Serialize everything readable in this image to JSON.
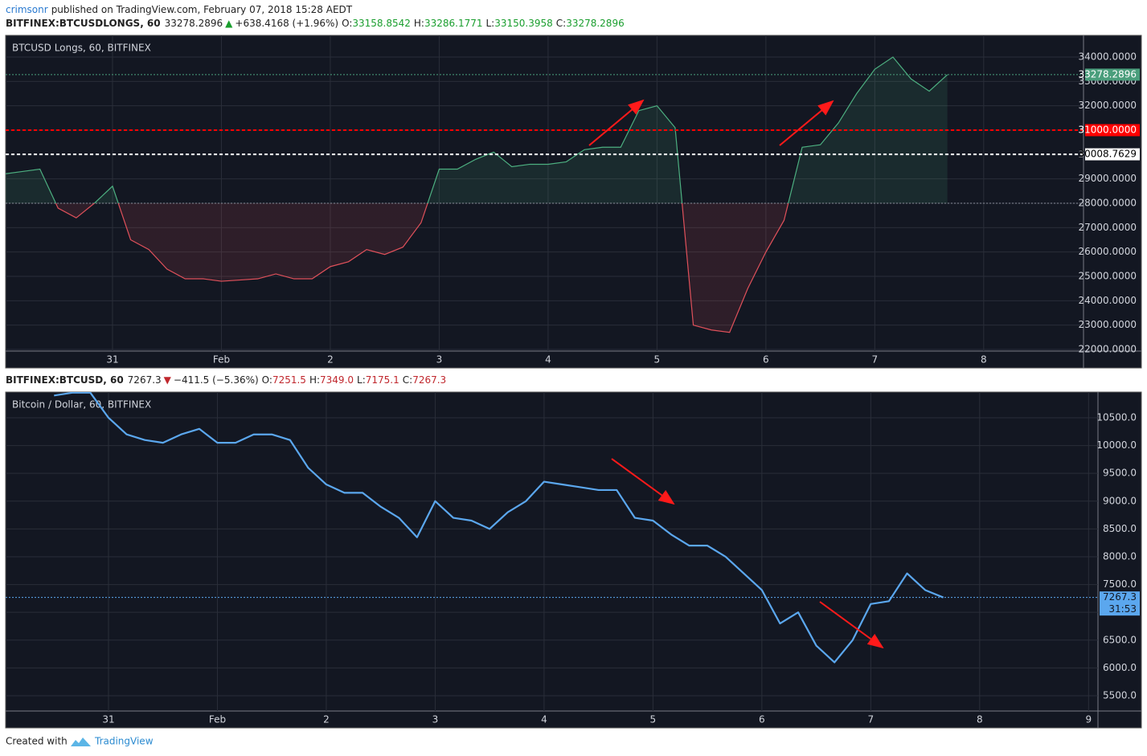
{
  "header": {
    "author": "crimsonr",
    "published": "published on TradingView.com, February 07, 2018 15:28 AEDT"
  },
  "footer": {
    "created": "Created with",
    "brand": "TradingView"
  },
  "chart_data": [
    {
      "type": "baseline-area",
      "symbol": "BITFINEX:BTCUSDLONGS, 60",
      "last": 33278.2896,
      "change": "+638.4168 (+1.96%)",
      "direction": "up",
      "value_color": "#1a9e2e",
      "ohlc": [
        {
          "label": "O:",
          "value": 33158.8542
        },
        {
          "label": "H:",
          "value": 33286.1771
        },
        {
          "label": "L:",
          "value": 33150.3958
        },
        {
          "label": "C:",
          "value": 33278.2896
        }
      ],
      "pane_title": "BTCUSD Longs, 60, BITFINEX",
      "categories": [
        null,
        null,
        null,
        null,
        null,
        null,
        "31",
        null,
        null,
        null,
        null,
        null,
        "Feb",
        null,
        null,
        null,
        null,
        null,
        "2",
        null,
        null,
        null,
        null,
        null,
        "3",
        null,
        null,
        null,
        null,
        null,
        "4",
        null,
        null,
        null,
        null,
        null,
        "5",
        null,
        null,
        null,
        null,
        null,
        "6",
        null,
        null,
        null,
        null,
        null,
        "7",
        null,
        null,
        null,
        null,
        null,
        "8"
      ],
      "values": [
        29200,
        29300,
        29400,
        27800,
        27400,
        28000,
        28700,
        26500,
        26100,
        25300,
        24900,
        24900,
        24800,
        24850,
        24900,
        25100,
        24900,
        24900,
        25400,
        25600,
        26100,
        25900,
        26200,
        27200,
        29400,
        29400,
        29800,
        30100,
        29500,
        29600,
        29600,
        29700,
        30200,
        30300,
        30300,
        31800,
        32000,
        31100,
        23000,
        22800,
        22700,
        24500,
        26000,
        27300,
        30300,
        30400,
        31300,
        32500,
        33500,
        34000,
        33100,
        32600,
        33278.2896,
        null,
        null
      ],
      "baseline": 28000,
      "color_up": "#4caf80",
      "color_down": "#e0505a",
      "ylim": [
        21934,
        34890
      ],
      "yticks": [
        {
          "value": 22000,
          "label": "22000.0000"
        },
        {
          "value": 23000,
          "label": "23000.0000"
        },
        {
          "value": 24000,
          "label": "24000.0000"
        },
        {
          "value": 25000,
          "label": "25000.0000"
        },
        {
          "value": 26000,
          "label": "26000.0000"
        },
        {
          "value": 27000,
          "label": "27000.0000"
        },
        {
          "value": 28000,
          "label": "28000.0000"
        },
        {
          "value": 29000,
          "label": "29000.0000"
        },
        {
          "value": 30000,
          "label": "30000.0000"
        },
        {
          "value": 31000,
          "label": "31000.0000"
        },
        {
          "value": 32000,
          "label": "32000.0000"
        },
        {
          "value": 33000,
          "label": "33000.0000"
        },
        {
          "value": 34000,
          "label": "34000.0000"
        }
      ],
      "price_lines": [
        {
          "value": 33278.2896,
          "label": "33278.2896",
          "color": "#4a9e7c",
          "text_color": "#ffffff",
          "dash": "2,2"
        },
        {
          "value": 31000,
          "label": "31000.0000",
          "color": "#ff0000",
          "text_color": "#ffffff",
          "dash": "4,3"
        },
        {
          "value": 30008.7629,
          "label": "30008.7629",
          "color": "#ffffff",
          "text_color": "#000000",
          "dash": "4,3"
        }
      ],
      "grid": true
    },
    {
      "type": "line",
      "symbol": "BITFINEX:BTCUSD, 60",
      "last": 7267.3,
      "change": "−411.5 (−5.36%)",
      "direction": "down",
      "value_color": "#c0272d",
      "ohlc": [
        {
          "label": "O:",
          "value": 7251.5
        },
        {
          "label": "H:",
          "value": 7349
        },
        {
          "label": "L:",
          "value": 7175.1
        },
        {
          "label": "C:",
          "value": 7267.3
        }
      ],
      "ohlc_labels": [
        "7251.5",
        "7349.0",
        "7175.1",
        "7267.3"
      ],
      "pane_title": "Bitcoin / Dollar, 60, BITFINEX",
      "categories": [
        null,
        null,
        null,
        null,
        null,
        null,
        "31",
        null,
        null,
        null,
        null,
        null,
        "Feb",
        null,
        null,
        null,
        null,
        null,
        "2",
        null,
        null,
        null,
        null,
        null,
        "3",
        null,
        null,
        null,
        null,
        null,
        "4",
        null,
        null,
        null,
        null,
        null,
        "5",
        null,
        null,
        null,
        null,
        null,
        "6",
        null,
        null,
        null,
        null,
        null,
        "7",
        null,
        null,
        null,
        null,
        null,
        "8",
        null,
        null,
        null,
        null,
        null,
        "9"
      ],
      "values": [
        null,
        null,
        null,
        10900,
        10950,
        10950,
        10500,
        10200,
        10100,
        10050,
        10200,
        10300,
        10050,
        10050,
        10200,
        10200,
        10100,
        9600,
        9300,
        9150,
        9150,
        8900,
        8700,
        8350,
        9000,
        8700,
        8650,
        8500,
        8800,
        9000,
        9350,
        9300,
        9250,
        9200,
        9200,
        8700,
        8650,
        8400,
        8200,
        8200,
        8000,
        7700,
        7400,
        6800,
        7000,
        6400,
        6100,
        6500,
        7150,
        7200,
        7700,
        7400,
        7267.3,
        null,
        null,
        null,
        null,
        null,
        null,
        null,
        null
      ],
      "color": "#5ba7ee",
      "ylim": [
        5225,
        10962
      ],
      "yticks": [
        {
          "value": 5500,
          "label": "5500.0"
        },
        {
          "value": 6000,
          "label": "6000.0"
        },
        {
          "value": 6500,
          "label": "6500.0"
        },
        {
          "value": 7000,
          "label": "7000.0"
        },
        {
          "value": 7500,
          "label": "7500.0"
        },
        {
          "value": 8000,
          "label": "8000.0"
        },
        {
          "value": 8500,
          "label": "8500.0"
        },
        {
          "value": 9000,
          "label": "9000.0"
        },
        {
          "value": 9500,
          "label": "9500.0"
        },
        {
          "value": 10000,
          "label": "10000.0"
        },
        {
          "value": 10500,
          "label": "10500.0"
        }
      ],
      "price_lines": [
        {
          "value": 7267.3,
          "label": "7267.3",
          "countdown": "31:53",
          "color": "#5ba7ee",
          "text_color": "#131722",
          "dash": "2,2"
        }
      ],
      "grid": true
    }
  ]
}
